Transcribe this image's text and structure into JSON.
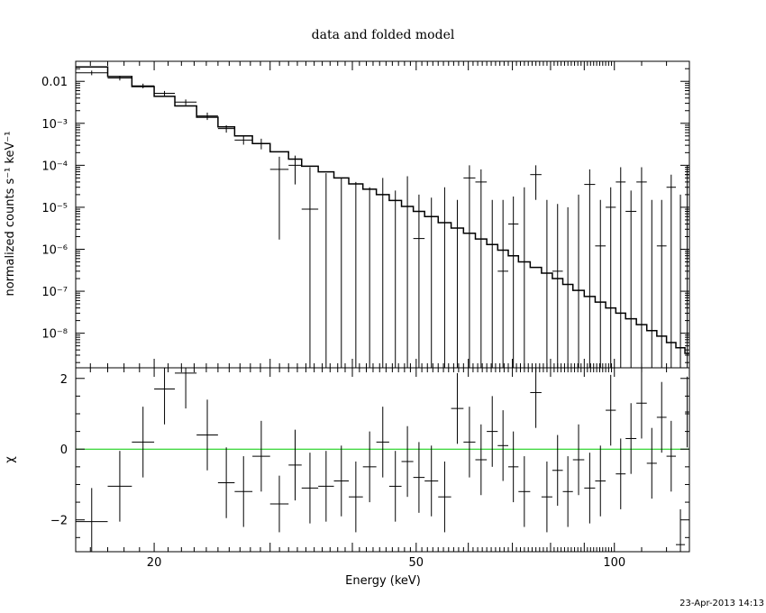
{
  "chart_data": {
    "type": "line",
    "title": "data and folded model",
    "xlabel": "Energy (keV)",
    "x_scale": "log",
    "xlim": [
      15.2,
      130
    ],
    "x_ticks": [
      20,
      50,
      100
    ],
    "timestamp": "23-Apr-2013 14:13",
    "panels": [
      {
        "name": "spectrum",
        "ylabel": "normalized counts s⁻¹ keV⁻¹",
        "y_scale": "log",
        "ylim": [
          1.5e-09,
          0.03
        ],
        "y_ticks": [
          {
            "value": 0.01,
            "label": "0.01"
          },
          {
            "value": 0.001,
            "label": "10⁻³"
          },
          {
            "value": 0.0001,
            "label": "10⁻⁴"
          },
          {
            "value": 1e-05,
            "label": "10⁻⁵"
          },
          {
            "value": 1e-06,
            "label": "10⁻⁶"
          },
          {
            "value": 1e-07,
            "label": "10⁻⁷"
          },
          {
            "value": 1e-08,
            "label": "10⁻⁸"
          }
        ],
        "data_points": [
          {
            "xlo": 15.2,
            "xhi": 17.0,
            "y": 0.016,
            "ylo": 0.014,
            "yhi": 0.018
          },
          {
            "xlo": 17.0,
            "xhi": 18.5,
            "y": 0.012,
            "ylo": 0.0105,
            "yhi": 0.0135
          },
          {
            "xlo": 18.5,
            "xhi": 20.0,
            "y": 0.0078,
            "ylo": 0.0068,
            "yhi": 0.0088
          },
          {
            "xlo": 20.0,
            "xhi": 21.5,
            "y": 0.0052,
            "ylo": 0.0045,
            "yhi": 0.0059
          },
          {
            "xlo": 21.5,
            "xhi": 23.2,
            "y": 0.0032,
            "ylo": 0.0027,
            "yhi": 0.0037
          },
          {
            "xlo": 23.2,
            "xhi": 25.0,
            "y": 0.0015,
            "ylo": 0.0012,
            "yhi": 0.0018
          },
          {
            "xlo": 25.0,
            "xhi": 26.5,
            "y": 0.00075,
            "ylo": 0.0006,
            "yhi": 0.0009
          },
          {
            "xlo": 26.5,
            "xhi": 28.2,
            "y": 0.0004,
            "ylo": 0.00031,
            "yhi": 0.0005
          },
          {
            "xlo": 28.2,
            "xhi": 30.0,
            "y": 0.00033,
            "ylo": 0.00024,
            "yhi": 0.00043
          },
          {
            "xlo": 30.0,
            "xhi": 32.0,
            "y": 8e-05,
            "ylo": 1.7e-06,
            "yhi": 0.00016
          },
          {
            "xlo": 32.0,
            "xhi": 33.5,
            "y": 0.0001,
            "ylo": 3.5e-05,
            "yhi": 0.00017
          },
          {
            "xlo": 33.5,
            "xhi": 35.5,
            "y": 9e-06,
            "ylo": 1e-09,
            "yhi": 9e-05
          },
          {
            "xlo": 35.5,
            "xhi": 37.5,
            "y": 1e-09,
            "ylo": 1e-09,
            "yhi": 6.5e-05
          },
          {
            "xlo": 37.5,
            "xhi": 39.5,
            "y": 1e-09,
            "ylo": 1e-09,
            "yhi": 5e-05
          },
          {
            "xlo": 39.5,
            "xhi": 41.5,
            "y": 1e-09,
            "ylo": 1e-09,
            "yhi": 4e-05
          },
          {
            "xlo": 41.5,
            "xhi": 43.5,
            "y": 1e-09,
            "ylo": 1e-09,
            "yhi": 3e-05
          },
          {
            "xlo": 43.5,
            "xhi": 45.5,
            "y": 1e-09,
            "ylo": 1e-09,
            "yhi": 5e-05
          },
          {
            "xlo": 45.5,
            "xhi": 47.5,
            "y": 1e-09,
            "ylo": 1e-09,
            "yhi": 2.5e-05
          },
          {
            "xlo": 47.5,
            "xhi": 49.5,
            "y": 1e-09,
            "ylo": 1e-09,
            "yhi": 5.5e-05
          },
          {
            "xlo": 49.5,
            "xhi": 51.5,
            "y": 1.8e-06,
            "ylo": 1e-09,
            "yhi": 2e-05
          },
          {
            "xlo": 51.5,
            "xhi": 54.0,
            "y": 1e-09,
            "ylo": 1e-09,
            "yhi": 1.7e-05
          },
          {
            "xlo": 54.0,
            "xhi": 56.5,
            "y": 1e-09,
            "ylo": 1e-09,
            "yhi": 3e-05
          },
          {
            "xlo": 56.5,
            "xhi": 59.0,
            "y": 1e-09,
            "ylo": 1e-09,
            "yhi": 1.5e-05
          },
          {
            "xlo": 59.0,
            "xhi": 61.5,
            "y": 5e-05,
            "ylo": 1e-09,
            "yhi": 0.0001
          },
          {
            "xlo": 61.5,
            "xhi": 64.0,
            "y": 4e-05,
            "ylo": 1e-09,
            "yhi": 8e-05
          },
          {
            "xlo": 64.0,
            "xhi": 66.5,
            "y": 1e-09,
            "ylo": 1e-09,
            "yhi": 1.5e-05
          },
          {
            "xlo": 66.5,
            "xhi": 69.0,
            "y": 3e-07,
            "ylo": 1e-09,
            "yhi": 1.5e-05
          },
          {
            "xlo": 69.0,
            "xhi": 71.5,
            "y": 4e-06,
            "ylo": 1e-09,
            "yhi": 1.8e-05
          },
          {
            "xlo": 71.5,
            "xhi": 74.5,
            "y": 1e-09,
            "ylo": 1e-09,
            "yhi": 3e-05
          },
          {
            "xlo": 74.5,
            "xhi": 77.5,
            "y": 6e-05,
            "ylo": 1.5e-05,
            "yhi": 0.0001
          },
          {
            "xlo": 77.5,
            "xhi": 80.5,
            "y": 1e-09,
            "ylo": 1e-09,
            "yhi": 1.5e-05
          },
          {
            "xlo": 80.5,
            "xhi": 83.5,
            "y": 3e-07,
            "ylo": 1e-09,
            "yhi": 1.2e-05
          },
          {
            "xlo": 83.5,
            "xhi": 86.5,
            "y": 1e-09,
            "ylo": 1e-09,
            "yhi": 1e-05
          },
          {
            "xlo": 86.5,
            "xhi": 90.0,
            "y": 1e-09,
            "ylo": 1e-09,
            "yhi": 2e-05
          },
          {
            "xlo": 90.0,
            "xhi": 93.5,
            "y": 3.5e-05,
            "ylo": 1e-09,
            "yhi": 8e-05
          },
          {
            "xlo": 93.5,
            "xhi": 97.0,
            "y": 1.2e-06,
            "ylo": 1e-09,
            "yhi": 1.5e-05
          },
          {
            "xlo": 97.0,
            "xhi": 100.5,
            "y": 1e-05,
            "ylo": 1e-09,
            "yhi": 3e-05
          },
          {
            "xlo": 100.5,
            "xhi": 104.0,
            "y": 4e-05,
            "ylo": 1e-09,
            "yhi": 9e-05
          },
          {
            "xlo": 104.0,
            "xhi": 108.0,
            "y": 8e-06,
            "ylo": 1e-09,
            "yhi": 2.5e-05
          },
          {
            "xlo": 108.0,
            "xhi": 112.0,
            "y": 4e-05,
            "ylo": 1e-09,
            "yhi": 9e-05
          },
          {
            "xlo": 112.0,
            "xhi": 116.0,
            "y": 1e-09,
            "ylo": 1e-09,
            "yhi": 1.5e-05
          },
          {
            "xlo": 116.0,
            "xhi": 120.0,
            "y": 1.2e-06,
            "ylo": 1e-09,
            "yhi": 1.5e-05
          },
          {
            "xlo": 120.0,
            "xhi": 124.0,
            "y": 3e-05,
            "ylo": 1e-09,
            "yhi": 6e-05
          },
          {
            "xlo": 124.0,
            "xhi": 128.0,
            "y": 1e-09,
            "ylo": 1e-09,
            "yhi": 2e-05
          },
          {
            "xlo": 128.0,
            "xhi": 130.0,
            "y": 6e-05,
            "ylo": 1e-09,
            "yhi": 0.0001
          }
        ],
        "model": [
          {
            "xlo": 15.2,
            "xhi": 17.0,
            "y": 0.022
          },
          {
            "xlo": 17.0,
            "xhi": 18.5,
            "y": 0.013
          },
          {
            "xlo": 18.5,
            "xhi": 20.0,
            "y": 0.0075
          },
          {
            "xlo": 20.0,
            "xhi": 21.5,
            "y": 0.0044
          },
          {
            "xlo": 21.5,
            "xhi": 23.2,
            "y": 0.0026
          },
          {
            "xlo": 23.2,
            "xhi": 25.0,
            "y": 0.0014
          },
          {
            "xlo": 25.0,
            "xhi": 26.5,
            "y": 0.00082
          },
          {
            "xlo": 26.5,
            "xhi": 28.2,
            "y": 0.0005
          },
          {
            "xlo": 28.2,
            "xhi": 30.0,
            "y": 0.00033
          },
          {
            "xlo": 30.0,
            "xhi": 32.0,
            "y": 0.00021
          },
          {
            "xlo": 32.0,
            "xhi": 33.5,
            "y": 0.00014
          },
          {
            "xlo": 33.5,
            "xhi": 35.5,
            "y": 9.5e-05
          },
          {
            "xlo": 35.5,
            "xhi": 37.5,
            "y": 7e-05
          },
          {
            "xlo": 37.5,
            "xhi": 39.5,
            "y": 5e-05
          },
          {
            "xlo": 39.5,
            "xhi": 41.5,
            "y": 3.6e-05
          },
          {
            "xlo": 41.5,
            "xhi": 43.5,
            "y": 2.7e-05
          },
          {
            "xlo": 43.5,
            "xhi": 45.5,
            "y": 2e-05
          },
          {
            "xlo": 45.5,
            "xhi": 47.5,
            "y": 1.45e-05
          },
          {
            "xlo": 47.5,
            "xhi": 49.5,
            "y": 1.05e-05
          },
          {
            "xlo": 49.5,
            "xhi": 51.5,
            "y": 8e-06
          },
          {
            "xlo": 51.5,
            "xhi": 54.0,
            "y": 6e-06
          },
          {
            "xlo": 54.0,
            "xhi": 56.5,
            "y": 4.3e-06
          },
          {
            "xlo": 56.5,
            "xhi": 59.0,
            "y": 3.2e-06
          },
          {
            "xlo": 59.0,
            "xhi": 61.5,
            "y": 2.4e-06
          },
          {
            "xlo": 61.5,
            "xhi": 64.0,
            "y": 1.75e-06
          },
          {
            "xlo": 64.0,
            "xhi": 66.5,
            "y": 1.3e-06
          },
          {
            "xlo": 66.5,
            "xhi": 69.0,
            "y": 9.5e-07
          },
          {
            "xlo": 69.0,
            "xhi": 71.5,
            "y": 7e-07
          },
          {
            "xlo": 71.5,
            "xhi": 74.5,
            "y": 5e-07
          },
          {
            "xlo": 74.5,
            "xhi": 77.5,
            "y": 3.7e-07
          },
          {
            "xlo": 77.5,
            "xhi": 80.5,
            "y": 2.7e-07
          },
          {
            "xlo": 80.5,
            "xhi": 83.5,
            "y": 2e-07
          },
          {
            "xlo": 83.5,
            "xhi": 86.5,
            "y": 1.45e-07
          },
          {
            "xlo": 86.5,
            "xhi": 90.0,
            "y": 1.05e-07
          },
          {
            "xlo": 90.0,
            "xhi": 93.5,
            "y": 7.5e-08
          },
          {
            "xlo": 93.5,
            "xhi": 97.0,
            "y": 5.5e-08
          },
          {
            "xlo": 97.0,
            "xhi": 100.5,
            "y": 4e-08
          },
          {
            "xlo": 100.5,
            "xhi": 104.0,
            "y": 3e-08
          },
          {
            "xlo": 104.0,
            "xhi": 108.0,
            "y": 2.2e-08
          },
          {
            "xlo": 108.0,
            "xhi": 112.0,
            "y": 1.6e-08
          },
          {
            "xlo": 112.0,
            "xhi": 116.0,
            "y": 1.15e-08
          },
          {
            "xlo": 116.0,
            "xhi": 120.0,
            "y": 8.5e-09
          },
          {
            "xlo": 120.0,
            "xhi": 124.0,
            "y": 6e-09
          },
          {
            "xlo": 124.0,
            "xhi": 128.0,
            "y": 4.5e-09
          },
          {
            "xlo": 128.0,
            "xhi": 130.0,
            "y": 3.3e-09
          }
        ]
      },
      {
        "name": "residuals",
        "ylabel": "χ",
        "y_scale": "linear",
        "ylim": [
          -2.9,
          2.3
        ],
        "y_ticks": [
          {
            "value": 2,
            "label": "2"
          },
          {
            "value": 0,
            "label": "0"
          },
          {
            "value": -2,
            "label": "−2"
          }
        ],
        "zero_line_color": "#00cc00",
        "data_points": [
          {
            "xlo": 15.2,
            "xhi": 17.0,
            "y": -2.05,
            "ylo": -3.0,
            "yhi": -1.1
          },
          {
            "xlo": 17.0,
            "xhi": 18.5,
            "y": -1.05,
            "ylo": -2.05,
            "yhi": -0.05
          },
          {
            "xlo": 18.5,
            "xhi": 20.0,
            "y": 0.2,
            "ylo": -0.8,
            "yhi": 1.2
          },
          {
            "xlo": 20.0,
            "xhi": 21.5,
            "y": 1.7,
            "ylo": 0.7,
            "yhi": 2.7
          },
          {
            "xlo": 21.5,
            "xhi": 23.2,
            "y": 2.15,
            "ylo": 1.15,
            "yhi": 3.15
          },
          {
            "xlo": 23.2,
            "xhi": 25.0,
            "y": 0.4,
            "ylo": -0.6,
            "yhi": 1.4
          },
          {
            "xlo": 25.0,
            "xhi": 26.5,
            "y": -0.95,
            "ylo": -1.95,
            "yhi": 0.05
          },
          {
            "xlo": 26.5,
            "xhi": 28.2,
            "y": -1.2,
            "ylo": -2.2,
            "yhi": -0.2
          },
          {
            "xlo": 28.2,
            "xhi": 30.0,
            "y": -0.2,
            "ylo": -1.2,
            "yhi": 0.8
          },
          {
            "xlo": 30.0,
            "xhi": 32.0,
            "y": -1.55,
            "ylo": -2.35,
            "yhi": -0.75
          },
          {
            "xlo": 32.0,
            "xhi": 33.5,
            "y": -0.45,
            "ylo": -1.45,
            "yhi": 0.55
          },
          {
            "xlo": 33.5,
            "xhi": 35.5,
            "y": -1.1,
            "ylo": -2.1,
            "yhi": -0.1
          },
          {
            "xlo": 35.5,
            "xhi": 37.5,
            "y": -1.05,
            "ylo": -2.05,
            "yhi": -0.05
          },
          {
            "xlo": 37.5,
            "xhi": 39.5,
            "y": -0.9,
            "ylo": -1.9,
            "yhi": 0.1
          },
          {
            "xlo": 39.5,
            "xhi": 41.5,
            "y": -1.35,
            "ylo": -2.35,
            "yhi": -0.35
          },
          {
            "xlo": 41.5,
            "xhi": 43.5,
            "y": -0.5,
            "ylo": -1.5,
            "yhi": 0.5
          },
          {
            "xlo": 43.5,
            "xhi": 45.5,
            "y": 0.2,
            "ylo": -0.8,
            "yhi": 1.2
          },
          {
            "xlo": 45.5,
            "xhi": 47.5,
            "y": -1.05,
            "ylo": -2.05,
            "yhi": -0.05
          },
          {
            "xlo": 47.5,
            "xhi": 49.5,
            "y": -0.35,
            "ylo": -1.35,
            "yhi": 0.65
          },
          {
            "xlo": 49.5,
            "xhi": 51.5,
            "y": -0.8,
            "ylo": -1.8,
            "yhi": 0.2
          },
          {
            "xlo": 51.5,
            "xhi": 54.0,
            "y": -0.9,
            "ylo": -1.9,
            "yhi": 0.1
          },
          {
            "xlo": 54.0,
            "xhi": 56.5,
            "y": -1.35,
            "ylo": -2.35,
            "yhi": -0.35
          },
          {
            "xlo": 56.5,
            "xhi": 59.0,
            "y": 1.15,
            "ylo": 0.15,
            "yhi": 2.15
          },
          {
            "xlo": 59.0,
            "xhi": 61.5,
            "y": 0.2,
            "ylo": -0.8,
            "yhi": 1.2
          },
          {
            "xlo": 61.5,
            "xhi": 64.0,
            "y": -0.3,
            "ylo": -1.3,
            "yhi": 0.7
          },
          {
            "xlo": 64.0,
            "xhi": 66.5,
            "y": 0.5,
            "ylo": -0.5,
            "yhi": 1.5
          },
          {
            "xlo": 66.5,
            "xhi": 69.0,
            "y": 0.1,
            "ylo": -0.9,
            "yhi": 1.1
          },
          {
            "xlo": 69.0,
            "xhi": 71.5,
            "y": -0.5,
            "ylo": -1.5,
            "yhi": 0.5
          },
          {
            "xlo": 71.5,
            "xhi": 74.5,
            "y": -1.2,
            "ylo": -2.2,
            "yhi": -0.2
          },
          {
            "xlo": 74.5,
            "xhi": 77.5,
            "y": 1.6,
            "ylo": 0.6,
            "yhi": 2.6
          },
          {
            "xlo": 77.5,
            "xhi": 80.5,
            "y": -1.35,
            "ylo": -2.35,
            "yhi": -0.35
          },
          {
            "xlo": 80.5,
            "xhi": 83.5,
            "y": -0.6,
            "ylo": -1.6,
            "yhi": 0.4
          },
          {
            "xlo": 83.5,
            "xhi": 86.5,
            "y": -1.2,
            "ylo": -2.2,
            "yhi": -0.2
          },
          {
            "xlo": 86.5,
            "xhi": 90.0,
            "y": -0.3,
            "ylo": -1.3,
            "yhi": 0.7
          },
          {
            "xlo": 90.0,
            "xhi": 93.5,
            "y": -1.1,
            "ylo": -2.1,
            "yhi": -0.1
          },
          {
            "xlo": 93.5,
            "xhi": 97.0,
            "y": -0.9,
            "ylo": -1.9,
            "yhi": 0.1
          },
          {
            "xlo": 97.0,
            "xhi": 100.5,
            "y": 1.1,
            "ylo": 0.1,
            "yhi": 2.1
          },
          {
            "xlo": 100.5,
            "xhi": 104.0,
            "y": -0.7,
            "ylo": -1.7,
            "yhi": 0.3
          },
          {
            "xlo": 104.0,
            "xhi": 108.0,
            "y": 0.3,
            "ylo": -0.7,
            "yhi": 1.3
          },
          {
            "xlo": 108.0,
            "xhi": 112.0,
            "y": 1.3,
            "ylo": 0.3,
            "yhi": 2.3
          },
          {
            "xlo": 112.0,
            "xhi": 116.0,
            "y": -0.4,
            "ylo": -1.4,
            "yhi": 0.6
          },
          {
            "xlo": 116.0,
            "xhi": 120.0,
            "y": 0.9,
            "ylo": -0.1,
            "yhi": 1.9
          },
          {
            "xlo": 120.0,
            "xhi": 124.0,
            "y": -0.2,
            "ylo": -1.2,
            "yhi": 0.8
          },
          {
            "xlo": 124.0,
            "xhi": 128.0,
            "y": -2.7,
            "ylo": -3.7,
            "yhi": -1.7
          },
          {
            "xlo": 128.0,
            "xhi": 130.0,
            "y": 1.05,
            "ylo": 0.05,
            "yhi": 2.05
          }
        ]
      }
    ]
  }
}
